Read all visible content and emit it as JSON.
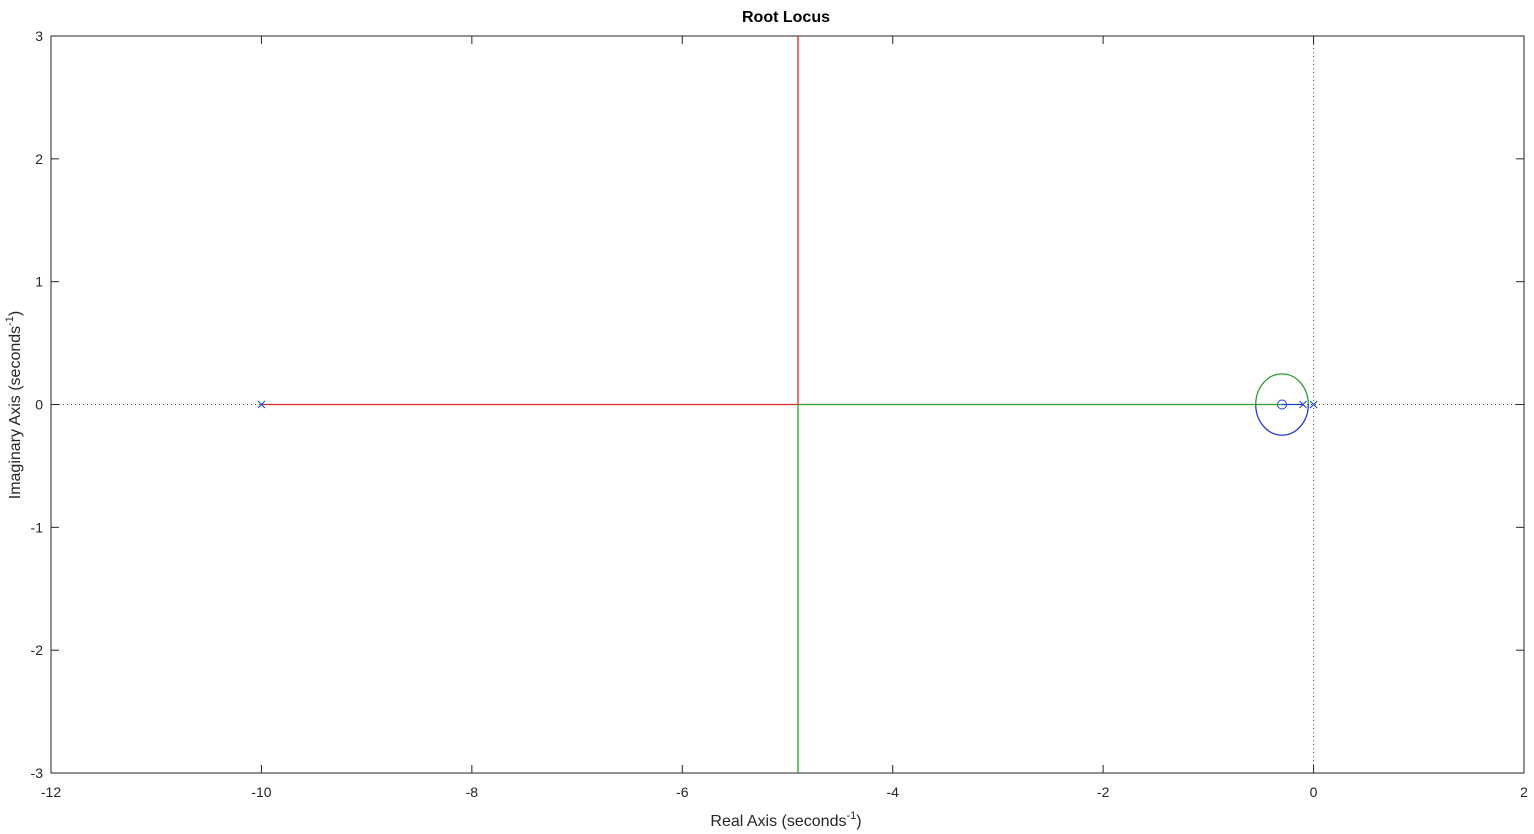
{
  "chart_data": {
    "type": "line",
    "title": "Root Locus",
    "xlabel": {
      "text": "Real Axis (seconds",
      "sup": "-1",
      "close": ")"
    },
    "ylabel": {
      "text": "Imaginary Axis (seconds",
      "sup": "-1",
      "close": ")"
    },
    "xlim": [
      -12,
      2
    ],
    "ylim": [
      -3,
      3
    ],
    "xticks": [
      -12,
      -10,
      -8,
      -6,
      -4,
      -2,
      0,
      2
    ],
    "yticks": [
      -3,
      -2,
      -1,
      0,
      1,
      2,
      3
    ],
    "xtick_labels": [
      "-12",
      "-10",
      "-8",
      "-6",
      "-4",
      "-2",
      "0",
      "2"
    ],
    "ytick_labels": [
      "-3",
      "-2",
      "-1",
      "0",
      "1",
      "2",
      "3"
    ],
    "grid": false,
    "reference_lines": {
      "x": 0,
      "y": 0,
      "style": "dotted"
    },
    "series": [
      {
        "color": "#d62728",
        "points": [
          [
            -10,
            0
          ],
          [
            -4.9,
            0
          ],
          [
            -4.9,
            3
          ]
        ]
      },
      {
        "color": "#2ca02c",
        "points": [
          [
            -0.3,
            0
          ],
          [
            -4.9,
            0
          ],
          [
            -4.9,
            -3
          ]
        ]
      },
      {
        "color": "#2ca02c",
        "circle": {
          "cx": -0.3,
          "cy": 0,
          "rx": 0.25,
          "ry": 0.25,
          "half": "upper"
        }
      },
      {
        "color": "#1f3fd6",
        "circle": {
          "cx": -0.3,
          "cy": 0,
          "rx": 0.25,
          "ry": 0.25,
          "half": "lower"
        }
      },
      {
        "color": "#1f3fd6",
        "points": [
          [
            -0.3,
            0
          ],
          [
            -0.1,
            0
          ]
        ]
      }
    ],
    "poles": [
      [
        -10,
        0
      ],
      [
        -0.1,
        0
      ],
      [
        0,
        0
      ]
    ],
    "zeros": [
      [
        -0.3,
        0
      ]
    ],
    "marker_color": "#1f3fd6"
  }
}
